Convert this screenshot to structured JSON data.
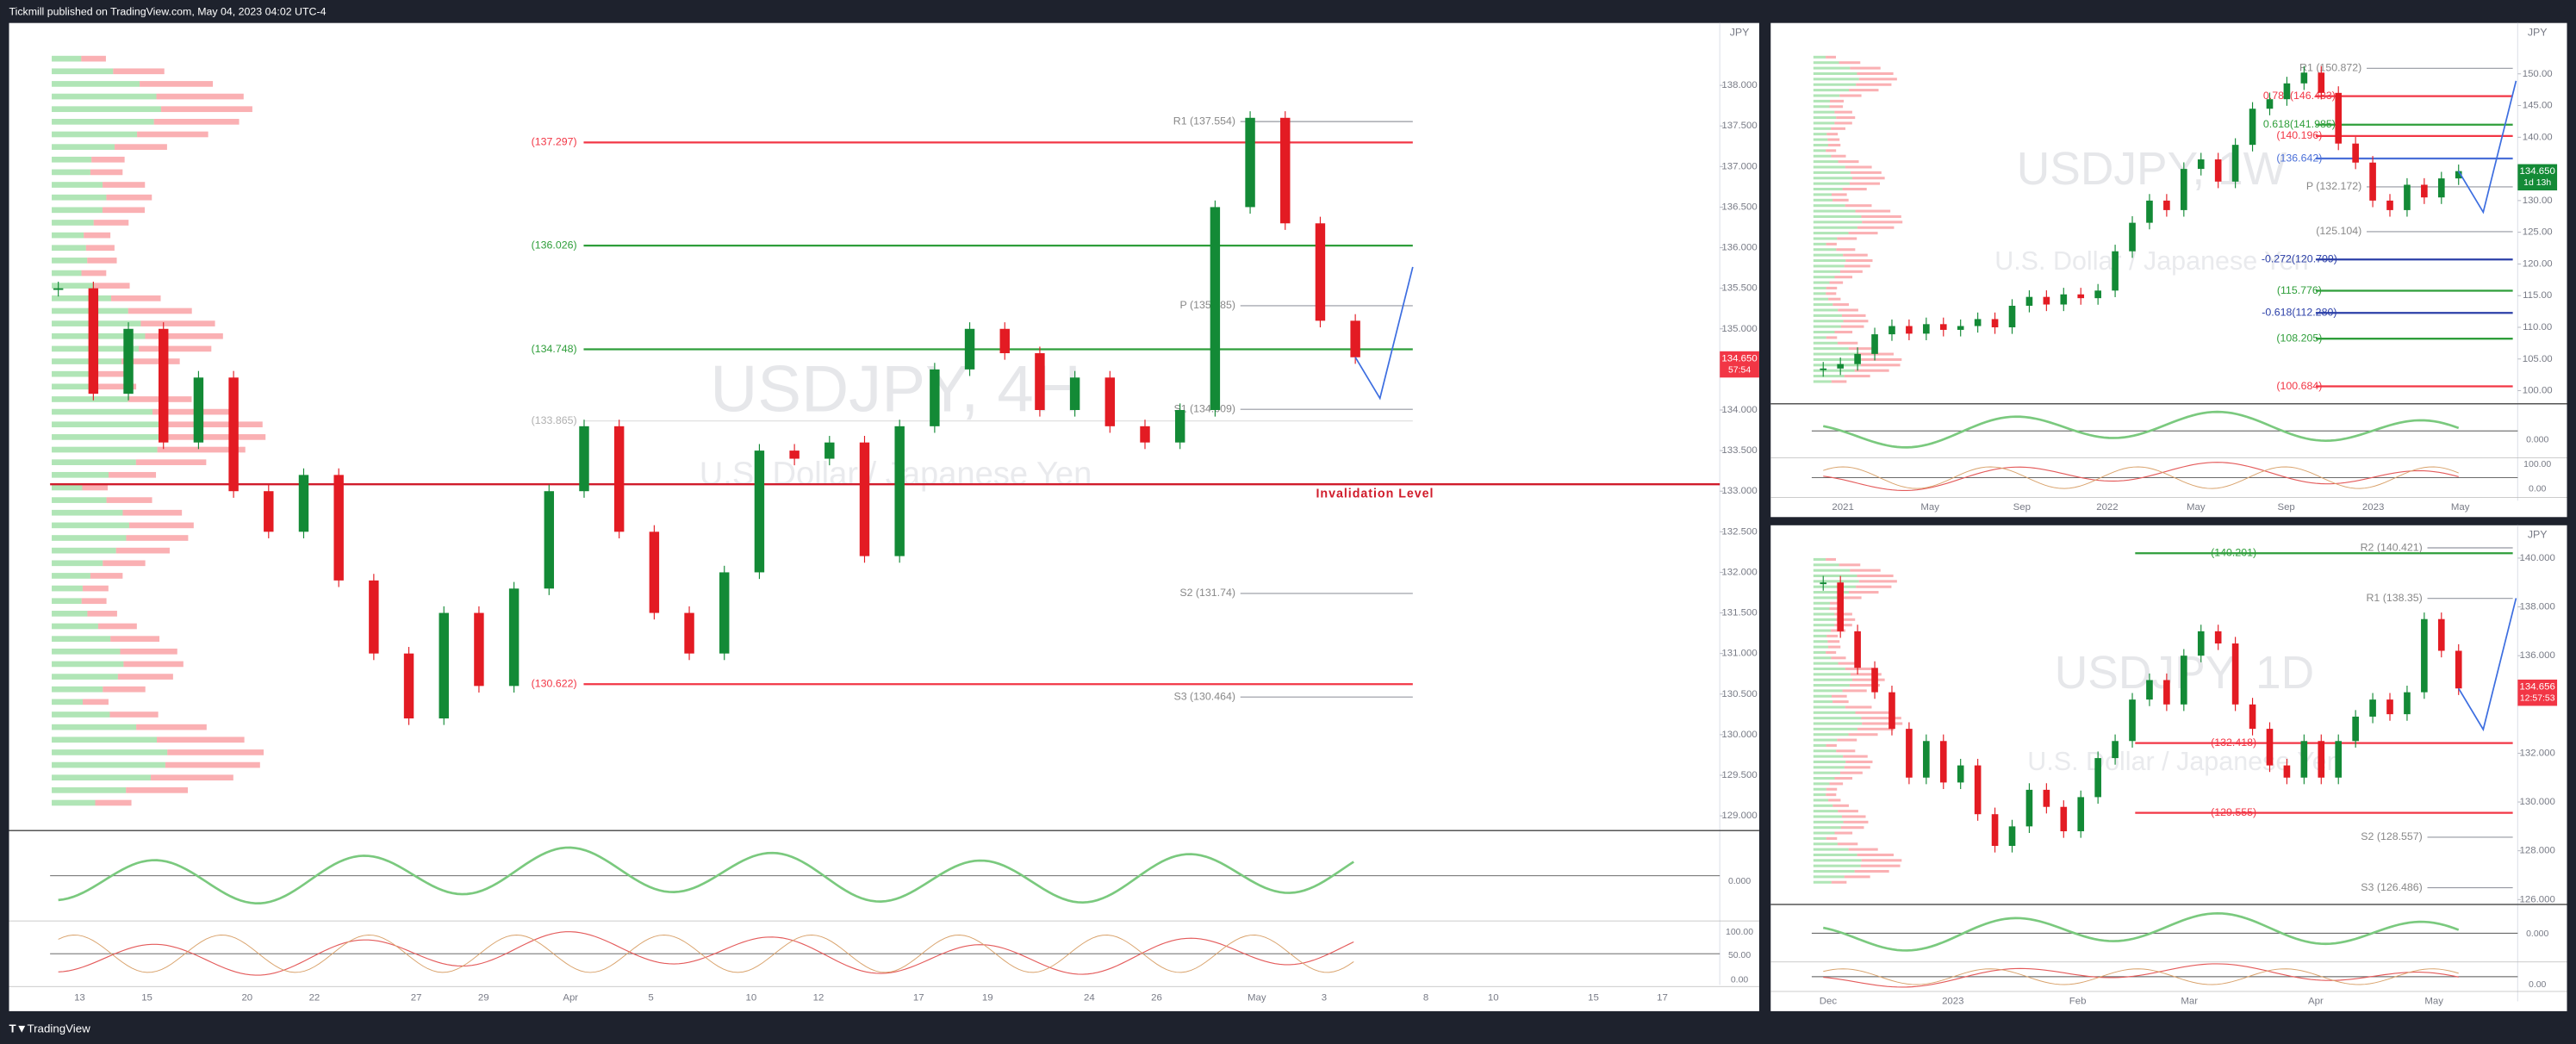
{
  "header": {
    "publisher": "Tickmill published on TradingView.com, May 04, 2023 04:02 UTC-4"
  },
  "footer": {
    "brand": "TradingView"
  },
  "panels": [
    {
      "watermark_symbol": "USDJPY, 4H",
      "watermark_name": "U.S. Dollar / Japanese Yen",
      "currency": "JPY",
      "yticks": [
        {
          "value": 138,
          "label": "138.000"
        },
        {
          "value": 137.5,
          "label": "137.500"
        },
        {
          "value": 137,
          "label": "137.000"
        },
        {
          "value": 136.5,
          "label": "136.500"
        },
        {
          "value": 136,
          "label": "136.000"
        },
        {
          "value": 135.5,
          "label": "135.500"
        },
        {
          "value": 135,
          "label": "135.000"
        },
        {
          "value": 134,
          "label": "134.000"
        },
        {
          "value": 133.5,
          "label": "133.500"
        },
        {
          "value": 133,
          "label": "133.000"
        },
        {
          "value": 132.5,
          "label": "132.500"
        },
        {
          "value": 132,
          "label": "132.000"
        },
        {
          "value": 131.5,
          "label": "131.500"
        },
        {
          "value": 131,
          "label": "131.000"
        },
        {
          "value": 130.5,
          "label": "130.500"
        },
        {
          "value": 130,
          "label": "130.000"
        },
        {
          "value": 129.5,
          "label": "129.500"
        },
        {
          "value": 129,
          "label": "129.000"
        }
      ],
      "price_badge": {
        "price": "134.650",
        "countdown": "57:54",
        "color": "#f23645"
      },
      "levels": [
        {
          "value": 137.297,
          "label": "(137.297)",
          "color": "#f23645",
          "style": "line"
        },
        {
          "value": 136.026,
          "label": "(136.026)",
          "color": "#2e9e3a",
          "style": "line"
        },
        {
          "value": 134.748,
          "label": "(134.748)",
          "color": "#2e9e3a",
          "style": "line"
        },
        {
          "value": 133.865,
          "label": "(133.865)",
          "color": "#b0b0b0",
          "style": "faint"
        },
        {
          "value": 130.622,
          "label": "(130.622)",
          "color": "#f23645",
          "style": "line"
        },
        {
          "value": 137.554,
          "label": "R1 (137.554)",
          "color": "#888888",
          "style": "pivot"
        },
        {
          "value": 135.285,
          "label": "P (135.285)",
          "color": "#888888",
          "style": "pivot"
        },
        {
          "value": 134.009,
          "label": "S1 (134.009)",
          "color": "#888888",
          "style": "pivot"
        },
        {
          "value": 131.74,
          "label": "S2 (131.74)",
          "color": "#888888",
          "style": "pivot"
        },
        {
          "value": 130.464,
          "label": "S3 (130.464)",
          "color": "#888888",
          "style": "pivot"
        }
      ],
      "annotation": "Invalidation Level",
      "dates": [
        "13",
        "15",
        "20",
        "22",
        "27",
        "29",
        "Apr",
        "5",
        "10",
        "12",
        "17",
        "19",
        "24",
        "26",
        "May",
        "3",
        "8",
        "10",
        "15",
        "17"
      ],
      "closes": [
        135.5,
        134.2,
        135.0,
        133.6,
        134.4,
        133.0,
        132.5,
        133.2,
        131.9,
        131.0,
        130.2,
        131.5,
        130.6,
        131.8,
        133.0,
        133.8,
        132.5,
        131.5,
        131.0,
        132.0,
        133.5,
        133.4,
        133.6,
        132.2,
        133.8,
        134.5,
        135.0,
        134.7,
        134.0,
        134.4,
        133.8,
        133.6,
        134.0,
        136.5,
        137.6,
        136.3,
        135.1,
        134.65
      ],
      "oscillator_labels": [
        "0.000",
        "100.00",
        "50.00",
        "0.00"
      ]
    },
    {
      "watermark_symbol": "USDJPY, 1W",
      "watermark_name": "U.S. Dollar / Japanese Yen",
      "currency": "JPY",
      "yticks": [
        {
          "value": 150,
          "label": "150.00"
        },
        {
          "value": 145,
          "label": "145.00"
        },
        {
          "value": 140,
          "label": "140.00"
        },
        {
          "value": 130,
          "label": "130.00"
        },
        {
          "value": 125,
          "label": "125.00"
        },
        {
          "value": 120,
          "label": "120.00"
        },
        {
          "value": 115,
          "label": "115.00"
        },
        {
          "value": 110,
          "label": "110.00"
        },
        {
          "value": 105,
          "label": "105.00"
        },
        {
          "value": 100,
          "label": "100.00"
        }
      ],
      "price_badge": {
        "price": "134.650",
        "countdown": "1d 13h",
        "color": "#138a36"
      },
      "levels": [
        {
          "value": 150.872,
          "label": "R1 (150.872)",
          "color": "#888888",
          "style": "pivot"
        },
        {
          "value": 146.483,
          "label": "0.786(146.483)",
          "color": "#f23645",
          "style": "line"
        },
        {
          "value": 141.985,
          "label": "0.618(141.985)",
          "color": "#2e9e3a",
          "style": "line"
        },
        {
          "value": 140.196,
          "label": "(140.196)",
          "color": "#f23645",
          "style": "line"
        },
        {
          "value": 136.642,
          "label": "(136.642)",
          "color": "#4a6fd8",
          "style": "line"
        },
        {
          "value": 132.172,
          "label": "P (132.172)",
          "color": "#888888",
          "style": "pivot"
        },
        {
          "value": 125.104,
          "label": "(125.104)",
          "color": "#888888",
          "style": "pivot"
        },
        {
          "value": 120.709,
          "label": "-0.272(120.709)",
          "color": "#2b3fa8",
          "style": "line"
        },
        {
          "value": 115.776,
          "label": "(115.776)",
          "color": "#2e9e3a",
          "style": "line"
        },
        {
          "value": 112.28,
          "label": "-0.618(112.280)",
          "color": "#2b3fa8",
          "style": "line"
        },
        {
          "value": 108.205,
          "label": "(108.205)",
          "color": "#2e9e3a",
          "style": "line"
        },
        {
          "value": 100.684,
          "label": "(100.684)",
          "color": "#f23645",
          "style": "line"
        }
      ],
      "dates": [
        "2021",
        "May",
        "Sep",
        "2022",
        "May",
        "Sep",
        "2023",
        "May"
      ],
      "closes": [
        103.5,
        104.2,
        105.8,
        108.9,
        110.2,
        109.0,
        110.5,
        109.6,
        110.2,
        111.3,
        110.0,
        113.4,
        114.8,
        113.6,
        115.2,
        114.6,
        115.8,
        122.0,
        126.5,
        130.0,
        128.5,
        135.0,
        136.5,
        133.0,
        138.8,
        144.5,
        146.0,
        148.5,
        150.2,
        147.0,
        139.0,
        136.0,
        130.0,
        128.5,
        132.5,
        130.5,
        133.5,
        134.65
      ],
      "oscillator_labels": [
        "0.000",
        "100.00",
        "0.00"
      ]
    },
    {
      "watermark_symbol": "USDJPY, 1D",
      "watermark_name": "U.S. Dollar / Japanese Yen",
      "currency": "JPY",
      "yticks": [
        {
          "value": 140,
          "label": "140.000"
        },
        {
          "value": 138,
          "label": "138.000"
        },
        {
          "value": 136,
          "label": "136.000"
        },
        {
          "value": 132,
          "label": "132.000"
        },
        {
          "value": 130,
          "label": "130.000"
        },
        {
          "value": 128,
          "label": "128.000"
        },
        {
          "value": 126,
          "label": "126.000"
        }
      ],
      "price_badge": {
        "price": "134.656",
        "countdown": "12:57:53",
        "color": "#f23645"
      },
      "levels": [
        {
          "value": 140.201,
          "label": "(140.201)",
          "color": "#2e9e3a",
          "style": "line"
        },
        {
          "value": 140.421,
          "label": "R2 (140.421)",
          "color": "#888888",
          "style": "pivot"
        },
        {
          "value": 138.35,
          "label": "R1 (138.35)",
          "color": "#888888",
          "style": "pivot"
        },
        {
          "value": 132.418,
          "label": "(132.418)",
          "color": "#f23645",
          "style": "line"
        },
        {
          "value": 129.555,
          "label": "(129.555)",
          "color": "#f23645",
          "style": "line"
        },
        {
          "value": 128.557,
          "label": "S2 (128.557)",
          "color": "#888888",
          "style": "pivot"
        },
        {
          "value": 126.486,
          "label": "S3 (126.486)",
          "color": "#888888",
          "style": "pivot"
        }
      ],
      "dates": [
        "Dec",
        "2023",
        "Feb",
        "Mar",
        "Apr",
        "May"
      ],
      "closes": [
        139.0,
        137.0,
        135.5,
        134.5,
        133.0,
        131.0,
        132.5,
        130.8,
        131.5,
        129.5,
        128.2,
        129.0,
        130.5,
        129.8,
        128.8,
        130.2,
        131.8,
        132.5,
        134.2,
        135.0,
        134.0,
        136.0,
        137.0,
        136.5,
        134.0,
        133.0,
        131.5,
        131.0,
        132.5,
        131.0,
        132.5,
        133.5,
        134.2,
        133.6,
        134.5,
        137.5,
        136.2,
        134.656
      ],
      "oscillator_labels": [
        "0.000",
        "0.00"
      ]
    }
  ]
}
